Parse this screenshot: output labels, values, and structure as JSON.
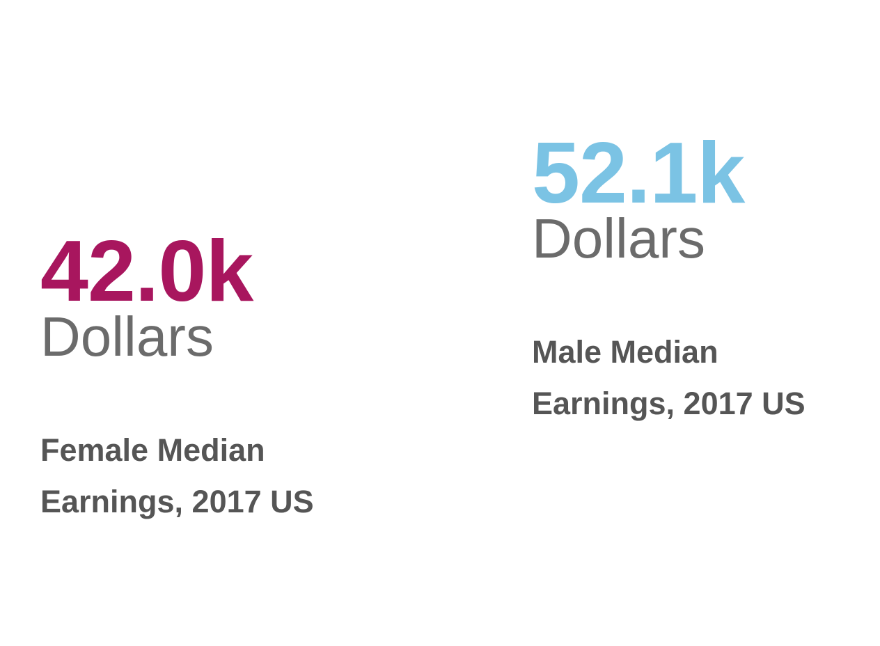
{
  "female": {
    "value": "42.0k",
    "unit": "Dollars",
    "caption_line1": "Female Median",
    "caption_line2": "Earnings, 2017 US",
    "color": "#a8165e"
  },
  "male": {
    "value": "52.1k",
    "unit": "Dollars",
    "caption_line1": "Male Median",
    "caption_line2": "Earnings, 2017 US",
    "color": "#7bc3e4"
  },
  "colors": {
    "unit_text": "#6b6b6b",
    "caption_text": "#555555",
    "background": "#ffffff"
  }
}
